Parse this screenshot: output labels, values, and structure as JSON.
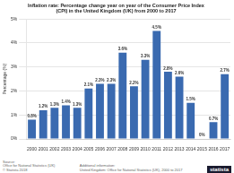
{
  "chart_data": {
    "type": "bar",
    "title": "Inflation rate: Percentage change year on year of the Consumer Price Index\n(CPI) in the United Kingdom (UK) from 2000 to 2017",
    "categories": [
      "2000",
      "2001",
      "2002",
      "2003",
      "2004",
      "2005",
      "2006",
      "2007",
      "2008",
      "2009",
      "2010",
      "2011",
      "2012",
      "2013",
      "2014",
      "2015",
      "2016",
      "2017"
    ],
    "values": [
      0.8,
      1.2,
      1.3,
      1.4,
      1.3,
      2.1,
      2.3,
      2.3,
      3.6,
      2.2,
      3.3,
      4.5,
      2.8,
      2.6,
      1.5,
      0.0,
      0.7,
      2.7
    ],
    "value_labels": [
      "0.8%",
      "1.2%",
      "1.3%",
      "1.4%",
      "1.3%",
      "2.1%",
      "2.3%",
      "2.3%",
      "3.6%",
      "2.2%",
      "3.3%",
      "4.5%",
      "2.8%",
      "2.6%",
      "1.5%",
      "0%",
      "0.7%",
      "2.7%"
    ],
    "color": "#3a6ab0",
    "ylabel": "Percentage (%)",
    "ylim": [
      0,
      5
    ],
    "yticks": [
      {
        "value": 0,
        "label": "0%"
      },
      {
        "value": 1,
        "label": "1%"
      },
      {
        "value": 2,
        "label": "2%"
      },
      {
        "value": 3,
        "label": "3%"
      },
      {
        "value": 4,
        "label": "4%"
      },
      {
        "value": 5,
        "label": "5%"
      }
    ],
    "grid": true,
    "data_labels": true,
    "annotations": [
      "Source:\nOffice for National Statistics (UK)\n© Statista 2018",
      "Additional information:\nUnited Kingdom: Office for National Statistics (UK), 2000 to 2017",
      "statista"
    ]
  }
}
